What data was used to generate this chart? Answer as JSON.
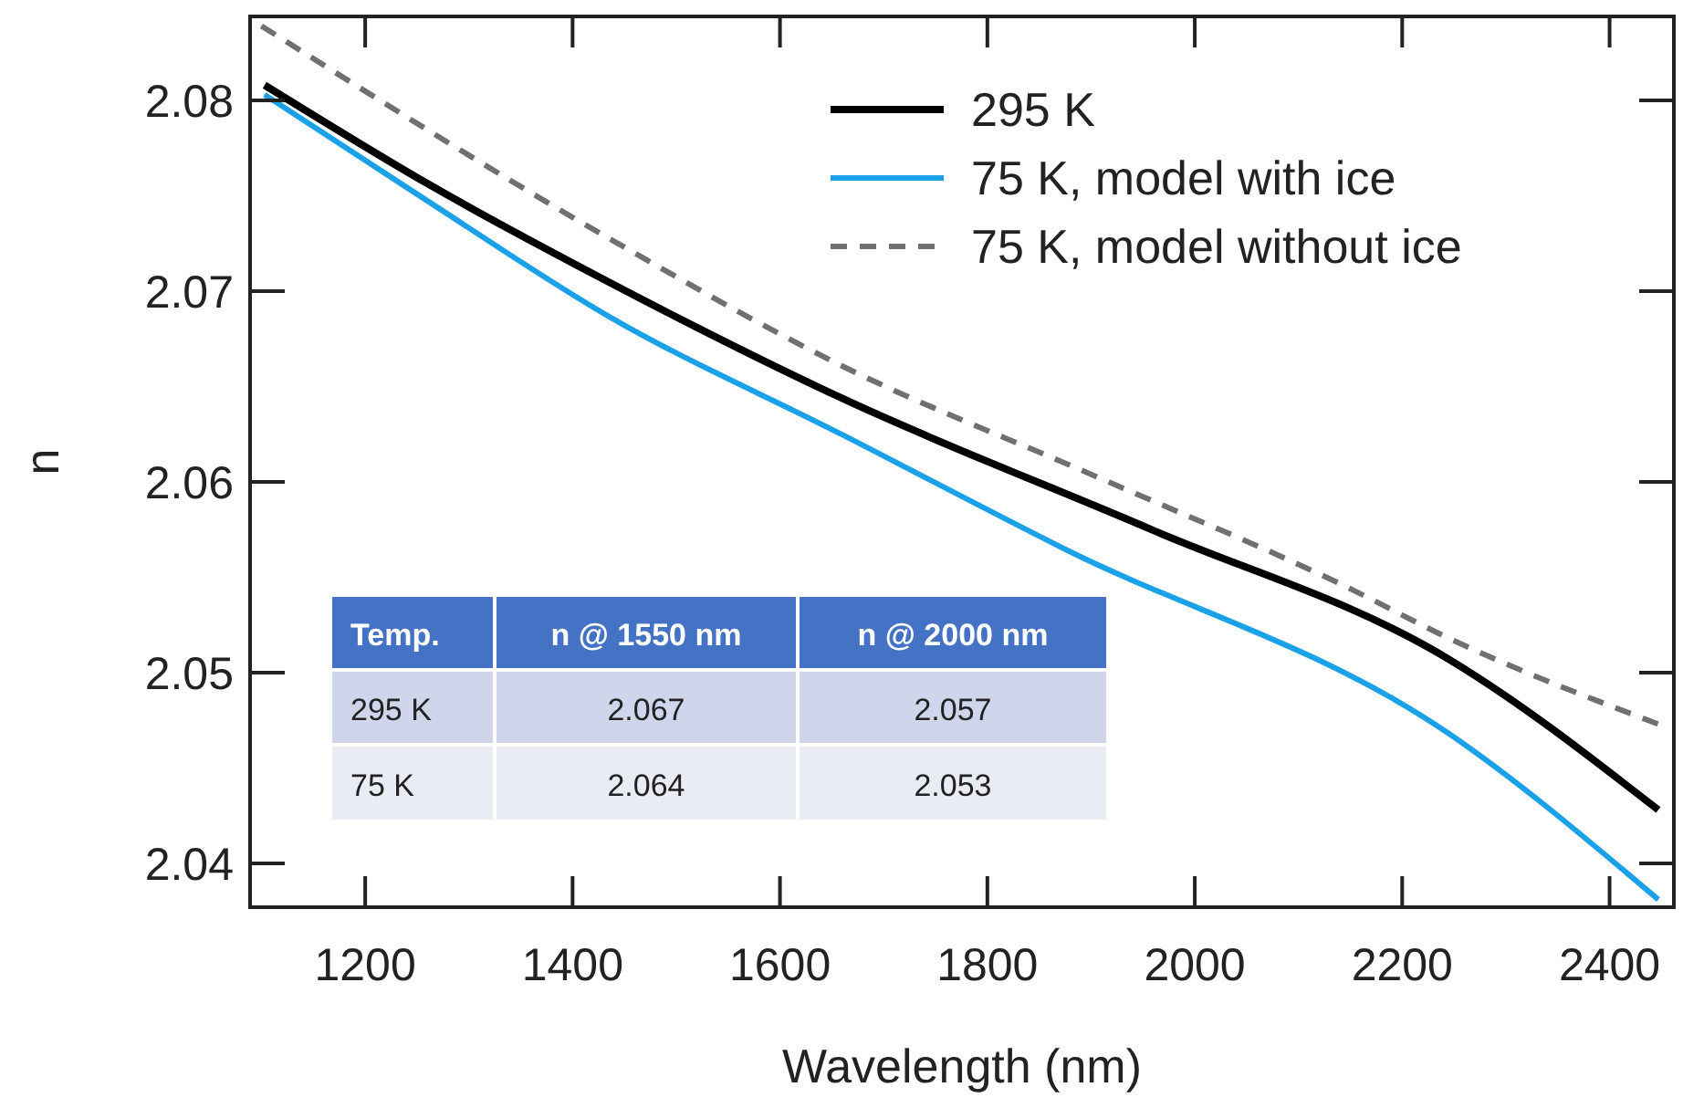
{
  "chart_data": {
    "type": "line",
    "xlabel": "Wavelength (nm)",
    "ylabel": "n",
    "xlim": [
      1089,
      2462
    ],
    "ylim": [
      2.0377,
      2.0844
    ],
    "xticks": [
      1200,
      1400,
      1600,
      1800,
      2000,
      2200,
      2400
    ],
    "yticks": [
      2.04,
      2.05,
      2.06,
      2.07,
      2.08
    ],
    "grid": false,
    "legend": "top right",
    "marker": "none",
    "series": [
      {
        "name": "295 K",
        "color": "#000000",
        "line_style": "solid",
        "x": [
          1103,
          1258,
          1434,
          1659,
          1958,
          2245,
          2447
        ],
        "values": [
          2.0808,
          2.0757,
          2.0705,
          2.0644,
          2.0575,
          2.0507,
          2.0428
        ]
      },
      {
        "name": "75 K, model with ice",
        "color": "#1ba1e8",
        "line_style": "solid",
        "x": [
          1103,
          1258,
          1434,
          1659,
          1870,
          2245,
          2447
        ],
        "values": [
          2.0803,
          2.0748,
          2.0687,
          2.0625,
          2.0566,
          2.0468,
          2.0381
        ]
      },
      {
        "name": "75 K, model without ice",
        "color": "#707070",
        "line_style": "dashed",
        "x": [
          1100,
          1434,
          1659,
          1904,
          2146,
          2245,
          2447
        ],
        "values": [
          2.0839,
          2.0728,
          2.0661,
          2.0603,
          2.0545,
          2.0518,
          2.0473
        ]
      }
    ],
    "annotations": [
      "Temp.",
      "n @ 1550 nm",
      "n @ 2000 nm",
      "295 K",
      "2.067",
      "2.057",
      "75 K",
      "2.064",
      "2.053"
    ]
  }
}
